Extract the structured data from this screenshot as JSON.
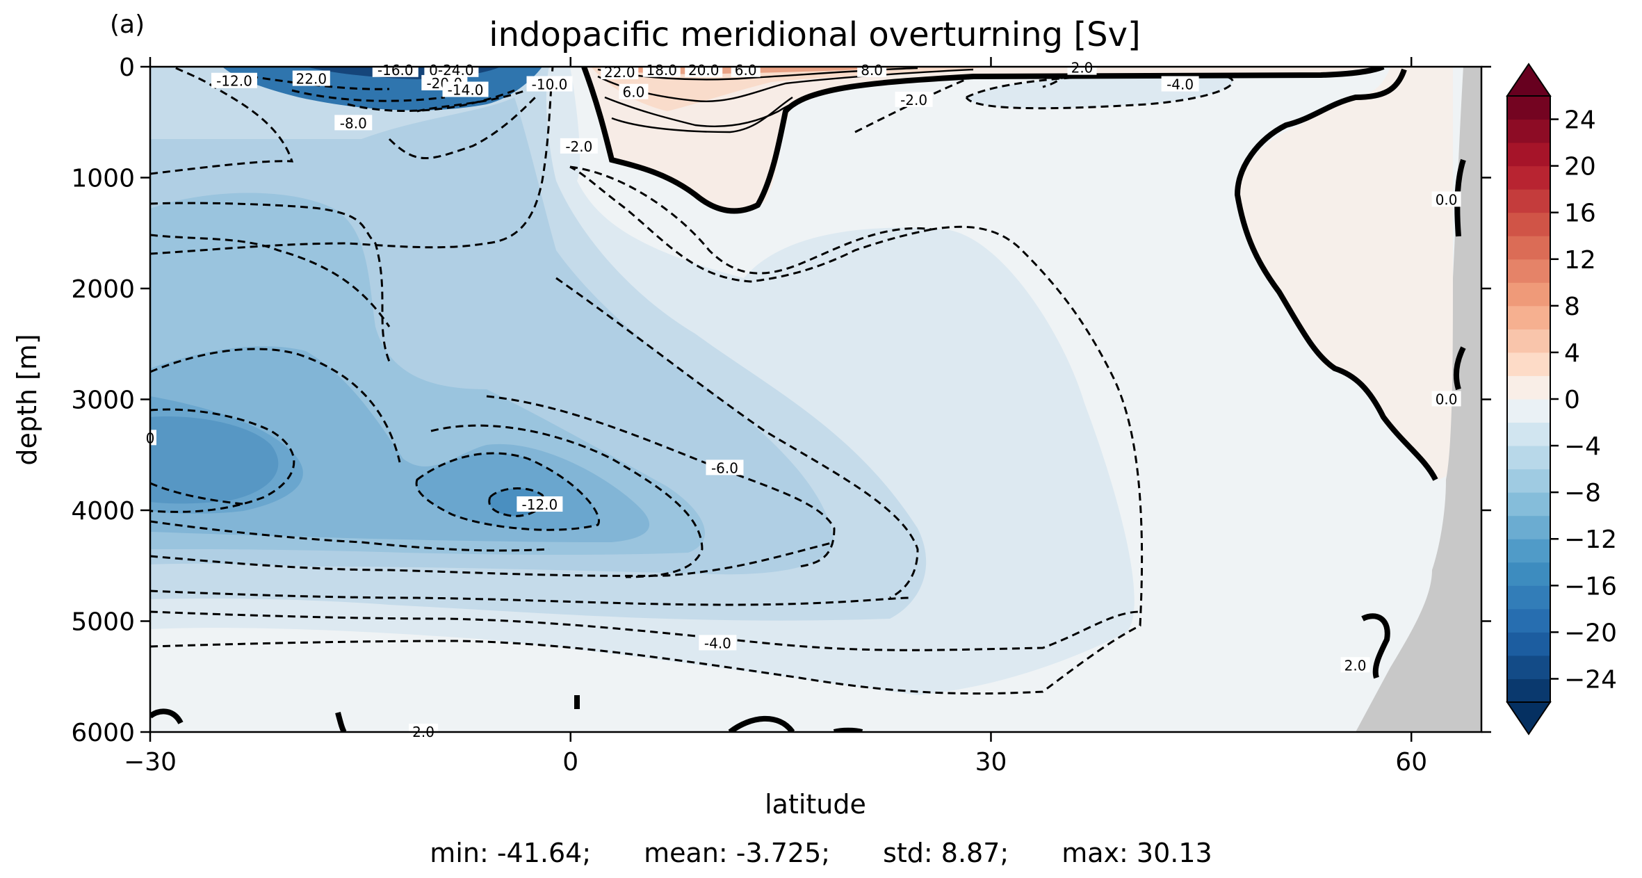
{
  "panel_label": "(a)",
  "stats": {
    "min": "min: -41.64;",
    "mean": "mean: -3.725;",
    "std": "std: 8.87;",
    "max": "max: 30.13"
  },
  "chart_data": {
    "type": "contour",
    "title": "indopacific meridional overturning [Sv]",
    "xlabel": "latitude",
    "ylabel": "depth [m]",
    "xlim": [
      -30,
      65
    ],
    "ylim": [
      6000,
      0
    ],
    "x_ticks": [
      -30,
      0,
      30,
      60
    ],
    "x_tick_labels": [
      "−30",
      "0",
      "30",
      "60"
    ],
    "y_ticks": [
      0,
      1000,
      2000,
      3000,
      4000,
      5000,
      6000
    ],
    "y_tick_labels": [
      "0",
      "1000",
      "2000",
      "3000",
      "4000",
      "5000",
      "6000"
    ],
    "colorbar": {
      "min": -26,
      "max": 26,
      "step": 2,
      "extend": "both",
      "cmap": "RdBu_r",
      "ticks": [
        24,
        20,
        16,
        12,
        8,
        4,
        0,
        -4,
        -8,
        -12,
        -16,
        -20,
        -24
      ],
      "tick_labels": [
        "24",
        "20",
        "16",
        "12",
        "8",
        "4",
        "0",
        "−4",
        "−8",
        "−12",
        "−16",
        "−20",
        "−24"
      ]
    },
    "contour_labels": [
      {
        "text": "-16.0",
        "lat": -12.5,
        "depth": 30
      },
      {
        "text": "0-24.0",
        "lat": -8.5,
        "depth": 30
      },
      {
        "text": "-20.0",
        "lat": -9,
        "depth": 150
      },
      {
        "text": "-14.0",
        "lat": -7.5,
        "depth": 210
      },
      {
        "text": "-12.0",
        "lat": -24,
        "depth": 130
      },
      {
        "text": "22.0",
        "lat": -18.5,
        "depth": 110
      },
      {
        "text": "-10.0",
        "lat": -1.5,
        "depth": 160
      },
      {
        "text": "-8.0",
        "lat": -15.5,
        "depth": 510
      },
      {
        "text": "-2.0",
        "lat": 0.6,
        "depth": 720
      },
      {
        "text": "22.0",
        "lat": 3.5,
        "depth": 50
      },
      {
        "text": "18.0",
        "lat": 6.5,
        "depth": 30
      },
      {
        "text": "20.0",
        "lat": 9.5,
        "depth": 30
      },
      {
        "text": "6.0",
        "lat": 12.5,
        "depth": 30
      },
      {
        "text": "6.0",
        "lat": 4.5,
        "depth": 230
      },
      {
        "text": "8.0",
        "lat": 21.5,
        "depth": 30
      },
      {
        "text": "-2.0",
        "lat": 24.5,
        "depth": 300
      },
      {
        "text": "2.0",
        "lat": 36.5,
        "depth": 10
      },
      {
        "text": "-4.0",
        "lat": 43.5,
        "depth": 160
      },
      {
        "text": "-6.0",
        "lat": 11,
        "depth": 3620
      },
      {
        "text": "-12.0",
        "lat": -2.2,
        "depth": 3950
      },
      {
        "text": "-4.0",
        "lat": 10.5,
        "depth": 5200
      },
      {
        "text": "0.0",
        "lat": 62.5,
        "depth": 1200
      },
      {
        "text": "0.0",
        "lat": 62.5,
        "depth": 3000
      },
      {
        "text": "2.0",
        "lat": 56,
        "depth": 5400
      },
      {
        "text": "0",
        "lat": -30,
        "depth": 3350
      },
      {
        "text": "2.0",
        "lat": -10.5,
        "depth": 6000
      }
    ],
    "land_mask_color": "#c8c8c8"
  }
}
